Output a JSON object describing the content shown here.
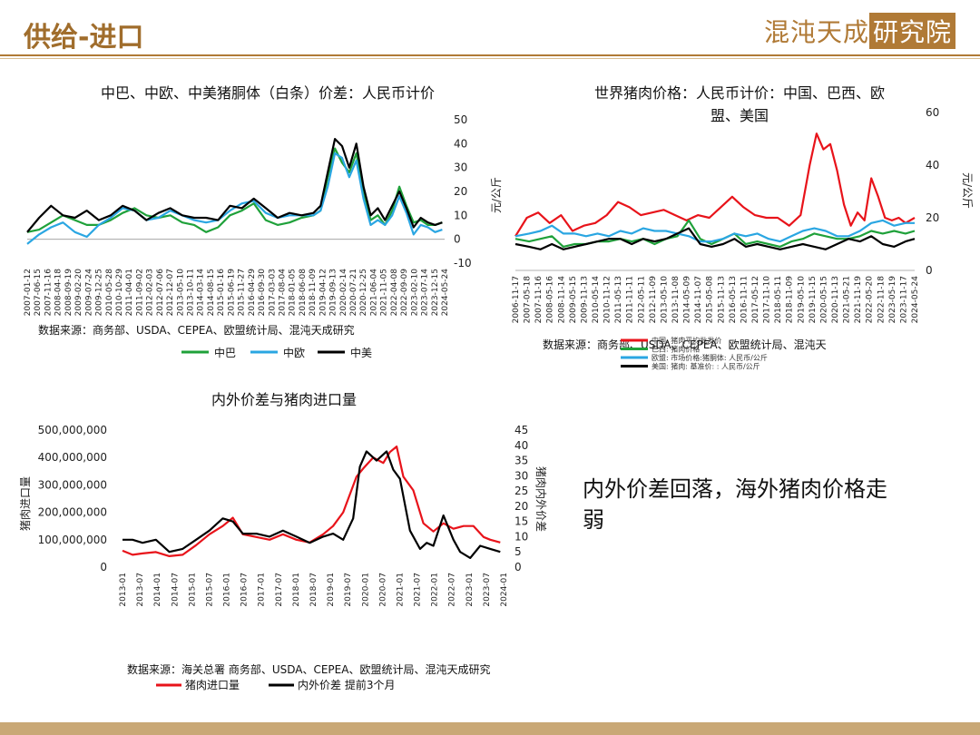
{
  "header": {
    "title": "供给-进口",
    "logo_text": "混沌天成",
    "logo_boxed": "研究院"
  },
  "callout": "内外价差回落，海外猪肉价格走弱",
  "colors": {
    "green": "#1fa13a",
    "blue": "#2aa6e2",
    "black": "#000000",
    "red": "#e8131a",
    "gold": "#b07a36"
  },
  "chart_data": [
    {
      "id": "spread",
      "type": "line",
      "title": "中巴、中欧、中美猪胴体（白条）价差：人民币计价",
      "ylim": [
        -10,
        50
      ],
      "yticks": [
        50,
        40,
        30,
        20,
        10,
        0,
        -10
      ],
      "xtick_labels": [
        "2007-01-12",
        "2007-06-15",
        "2007-11-16",
        "2008-04-18",
        "2008-09-19",
        "2009-02-20",
        "2009-07-24",
        "2009-12-25",
        "2010-05-28",
        "2010-10-29",
        "2011-04-01",
        "2011-09-02",
        "2012-02-03",
        "2012-07-06",
        "2012-12-07",
        "2013-05-10",
        "2013-10-11",
        "2014-03-14",
        "2014-08-15",
        "2015-01-16",
        "2015-06-19",
        "2015-11-27",
        "2016-04-29",
        "2016-09-30",
        "2017-03-03",
        "2017-08-04",
        "2018-01-05",
        "2018-06-08",
        "2018-11-09",
        "2019-04-12",
        "2019-09-13",
        "2020-02-14",
        "2020-07-21",
        "2020-12-25",
        "2021-06-04",
        "2021-11-05",
        "2022-04-08",
        "2022-09-09",
        "2023-02-10",
        "2023-07-14",
        "2023-12-15",
        "2024-05-24"
      ],
      "series": [
        {
          "name": "中巴",
          "color": "#1fa13a",
          "x": [
            2007.0,
            2007.5,
            2008.0,
            2008.5,
            2009.0,
            2009.5,
            2010.0,
            2010.5,
            2011.0,
            2011.5,
            2012.0,
            2012.5,
            2013.0,
            2013.5,
            2014.0,
            2014.5,
            2015.0,
            2015.5,
            2016.0,
            2016.5,
            2017.0,
            2017.5,
            2018.0,
            2018.5,
            2019.0,
            2019.3,
            2019.6,
            2019.9,
            2020.2,
            2020.5,
            2020.8,
            2021.1,
            2021.4,
            2021.7,
            2022.0,
            2022.3,
            2022.6,
            2022.9,
            2023.2,
            2023.5,
            2023.8,
            2024.1,
            2024.4
          ],
          "y": [
            3,
            4,
            7,
            10,
            8,
            6,
            6,
            8,
            11,
            13,
            10,
            9,
            10,
            7,
            6,
            3,
            5,
            10,
            12,
            15,
            8,
            6,
            7,
            9,
            10,
            12,
            26,
            38,
            32,
            28,
            36,
            20,
            8,
            10,
            6,
            12,
            22,
            14,
            7,
            8,
            6,
            6,
            7
          ]
        },
        {
          "name": "中欧",
          "color": "#2aa6e2",
          "x": [
            2007.0,
            2007.5,
            2008.0,
            2008.5,
            2009.0,
            2009.5,
            2010.0,
            2010.5,
            2011.0,
            2011.5,
            2012.0,
            2012.5,
            2013.0,
            2013.5,
            2014.0,
            2014.5,
            2015.0,
            2015.5,
            2016.0,
            2016.5,
            2017.0,
            2017.5,
            2018.0,
            2018.5,
            2019.0,
            2019.3,
            2019.6,
            2019.9,
            2020.2,
            2020.5,
            2020.8,
            2021.1,
            2021.4,
            2021.7,
            2022.0,
            2022.3,
            2022.6,
            2022.9,
            2023.2,
            2023.5,
            2023.8,
            2024.1,
            2024.4
          ],
          "y": [
            -2,
            2,
            5,
            7,
            3,
            1,
            6,
            9,
            13,
            12,
            8,
            9,
            12,
            10,
            8,
            7,
            8,
            12,
            15,
            16,
            11,
            9,
            10,
            10,
            10,
            12,
            22,
            36,
            34,
            26,
            33,
            17,
            6,
            8,
            6,
            10,
            18,
            11,
            2,
            6,
            5,
            3,
            4
          ]
        },
        {
          "name": "中美",
          "color": "#000000",
          "x": [
            2007.0,
            2007.5,
            2008.0,
            2008.5,
            2009.0,
            2009.5,
            2010.0,
            2010.5,
            2011.0,
            2011.5,
            2012.0,
            2012.5,
            2013.0,
            2013.5,
            2014.0,
            2014.5,
            2015.0,
            2015.5,
            2016.0,
            2016.5,
            2017.0,
            2017.5,
            2018.0,
            2018.5,
            2019.0,
            2019.3,
            2019.6,
            2019.9,
            2020.2,
            2020.5,
            2020.8,
            2021.1,
            2021.4,
            2021.7,
            2022.0,
            2022.3,
            2022.6,
            2022.9,
            2023.2,
            2023.5,
            2023.8,
            2024.1,
            2024.4
          ],
          "y": [
            3,
            9,
            14,
            10,
            9,
            12,
            8,
            10,
            14,
            12,
            8,
            11,
            13,
            10,
            9,
            9,
            8,
            14,
            13,
            17,
            13,
            9,
            11,
            10,
            11,
            14,
            28,
            42,
            39,
            30,
            40,
            22,
            10,
            13,
            8,
            14,
            20,
            13,
            5,
            9,
            7,
            6,
            7
          ]
        }
      ],
      "legend": "bottom",
      "source": "数据来源：商务部、USDA、CEPEA、欧盟统计局、混沌天成研究"
    },
    {
      "id": "world",
      "type": "line",
      "title_lines": [
        "世界猪肉价格：人民币计价：中国、巴西、欧",
        "盟、美国"
      ],
      "ylabel": "元/公斤",
      "ylim": [
        0,
        60
      ],
      "yticks": [
        60,
        40,
        20,
        0
      ],
      "xtick_labels": [
        "2006-11-17",
        "2007-05-18",
        "2007-11-16",
        "2008-05-16",
        "2008-11-14",
        "2009-05-15",
        "2009-11-13",
        "2010-05-14",
        "2010-11-12",
        "2011-05-13",
        "2011-11-11",
        "2012-05-11",
        "2012-11-09",
        "2013-05-10",
        "2013-11-08",
        "2014-05-09",
        "2014-11-07",
        "2015-05-08",
        "2015-11-13",
        "2016-05-13",
        "2016-11-11",
        "2017-05-12",
        "2017-11-10",
        "2018-05-11",
        "2018-11-09",
        "2019-05-10",
        "2019-11-15",
        "2020-05-15",
        "2020-11-13",
        "2021-05-21",
        "2021-11-19",
        "2022-05-20",
        "2022-11-18",
        "2023-05-19",
        "2023-11-17",
        "2024-05-24"
      ],
      "series": [
        {
          "name": "中国",
          "color": "#e8131a",
          "x": [
            2006.9,
            2007.4,
            2007.9,
            2008.4,
            2008.9,
            2009.4,
            2009.9,
            2010.4,
            2010.9,
            2011.4,
            2011.9,
            2012.4,
            2012.9,
            2013.4,
            2013.9,
            2014.4,
            2014.9,
            2015.4,
            2015.9,
            2016.4,
            2016.9,
            2017.4,
            2017.9,
            2018.4,
            2018.9,
            2019.4,
            2019.8,
            2020.1,
            2020.4,
            2020.7,
            2021.0,
            2021.3,
            2021.6,
            2021.9,
            2022.2,
            2022.5,
            2022.8,
            2023.1,
            2023.4,
            2023.7,
            2024.0,
            2024.4
          ],
          "y": [
            13,
            20,
            22,
            18,
            21,
            15,
            17,
            18,
            21,
            26,
            24,
            21,
            22,
            23,
            21,
            19,
            21,
            20,
            24,
            28,
            24,
            21,
            20,
            20,
            17,
            21,
            40,
            52,
            46,
            48,
            38,
            25,
            17,
            22,
            19,
            35,
            28,
            20,
            19,
            20,
            18,
            20
          ]
        },
        {
          "name": "巴西",
          "color": "#1fa13a",
          "x": [
            2006.9,
            2007.5,
            2008.0,
            2008.5,
            2009.0,
            2009.5,
            2010.0,
            2010.5,
            2011.0,
            2011.5,
            2012.0,
            2012.5,
            2013.0,
            2013.5,
            2014.0,
            2014.5,
            2015.0,
            2015.5,
            2016.0,
            2016.5,
            2017.0,
            2017.5,
            2018.0,
            2018.5,
            2019.0,
            2019.5,
            2020.0,
            2020.5,
            2021.0,
            2021.5,
            2022.0,
            2022.5,
            2023.0,
            2023.5,
            2024.0,
            2024.4
          ],
          "y": [
            12,
            11,
            12,
            13,
            9,
            10,
            10,
            11,
            11,
            12,
            11,
            12,
            10,
            12,
            13,
            19,
            12,
            10,
            12,
            14,
            10,
            11,
            10,
            9,
            11,
            12,
            14,
            13,
            12,
            12,
            13,
            15,
            14,
            15,
            14,
            15
          ]
        },
        {
          "name": "欧盟",
          "color": "#2aa6e2",
          "x": [
            2006.9,
            2007.5,
            2008.0,
            2008.5,
            2009.0,
            2009.5,
            2010.0,
            2010.5,
            2011.0,
            2011.5,
            2012.0,
            2012.5,
            2013.0,
            2013.5,
            2014.0,
            2014.5,
            2015.0,
            2015.5,
            2016.0,
            2016.5,
            2017.0,
            2017.5,
            2018.0,
            2018.5,
            2019.0,
            2019.5,
            2020.0,
            2020.5,
            2021.0,
            2021.5,
            2022.0,
            2022.5,
            2023.0,
            2023.5,
            2024.0,
            2024.4
          ],
          "y": [
            13,
            14,
            15,
            17,
            14,
            14,
            13,
            14,
            13,
            15,
            14,
            16,
            15,
            15,
            14,
            13,
            11,
            11,
            12,
            14,
            13,
            14,
            12,
            11,
            13,
            15,
            16,
            15,
            13,
            13,
            15,
            18,
            19,
            17,
            18,
            18
          ]
        },
        {
          "name": "美国",
          "color": "#000000",
          "x": [
            2006.9,
            2007.5,
            2008.0,
            2008.5,
            2009.0,
            2009.5,
            2010.0,
            2010.5,
            2011.0,
            2011.5,
            2012.0,
            2012.5,
            2013.0,
            2013.5,
            2014.0,
            2014.5,
            2015.0,
            2015.5,
            2016.0,
            2016.5,
            2017.0,
            2017.5,
            2018.0,
            2018.5,
            2019.0,
            2019.5,
            2020.0,
            2020.5,
            2021.0,
            2021.5,
            2022.0,
            2022.5,
            2023.0,
            2023.5,
            2024.0,
            2024.4
          ],
          "y": [
            10,
            9,
            8,
            10,
            8,
            9,
            10,
            11,
            12,
            12,
            10,
            12,
            11,
            12,
            14,
            16,
            10,
            9,
            10,
            12,
            9,
            10,
            9,
            8,
            9,
            10,
            9,
            8,
            10,
            12,
            11,
            13,
            10,
            9,
            11,
            12
          ]
        }
      ],
      "source": "数据来源：商务部、USDA、CEPEA、欧盟统计局、混沌天",
      "legend_lines": [
        "中国: 猪肉平均批发价",
        "巴西: 猪肉价格",
        "欧盟: 市场价格:猪胴体: 人民币/公斤",
        "美国: 猪肉: 基准价: : 人民币/公斤"
      ]
    },
    {
      "id": "import",
      "type": "line",
      "title": "内外价差与猪肉进口量",
      "ylabel": "猪肉进口量",
      "y2label": "猪肉内外价差",
      "ylim": [
        0,
        500000000
      ],
      "yticks": [
        "500,000,000",
        "400,000,000",
        "300,000,000",
        "200,000,000",
        "100,000,000",
        "0"
      ],
      "y2lim": [
        0,
        45
      ],
      "y2ticks": [
        45,
        40,
        35,
        30,
        25,
        20,
        15,
        10,
        5,
        0
      ],
      "xtick_labels": [
        "2013-01",
        "2013-07",
        "2014-01",
        "2014-07",
        "2015-01",
        "2015-07",
        "2016-01",
        "2016-07",
        "2017-01",
        "2017-07",
        "2018-01",
        "2018-07",
        "2019-01",
        "2019-07",
        "2020-01",
        "2020-07",
        "2021-01",
        "2021-07",
        "2022-01",
        "2022-07",
        "2023-01",
        "2023-07",
        "2024-01"
      ],
      "series": [
        {
          "name": "猪肉进口量",
          "color": "#e8131a",
          "axis": "left",
          "x": [
            2013.0,
            2013.3,
            2013.6,
            2014.0,
            2014.4,
            2014.8,
            2015.2,
            2015.6,
            2016.0,
            2016.3,
            2016.6,
            2017.0,
            2017.4,
            2017.8,
            2018.2,
            2018.6,
            2019.0,
            2019.3,
            2019.6,
            2020.0,
            2020.2,
            2020.5,
            2020.8,
            2021.0,
            2021.2,
            2021.4,
            2021.7,
            2022.0,
            2022.3,
            2022.6,
            2022.9,
            2023.2,
            2023.5,
            2023.8,
            2024.0,
            2024.3
          ],
          "y": [
            60000000,
            45000000,
            50000000,
            55000000,
            40000000,
            45000000,
            80000000,
            120000000,
            150000000,
            180000000,
            120000000,
            110000000,
            100000000,
            120000000,
            100000000,
            90000000,
            120000000,
            150000000,
            200000000,
            330000000,
            360000000,
            400000000,
            380000000,
            420000000,
            440000000,
            330000000,
            280000000,
            160000000,
            130000000,
            160000000,
            140000000,
            150000000,
            150000000,
            110000000,
            100000000,
            90000000
          ]
        },
        {
          "name": "内外价差 提前3个月",
          "color": "#000000",
          "axis": "right",
          "x": [
            2013.0,
            2013.3,
            2013.6,
            2014.0,
            2014.4,
            2014.8,
            2015.2,
            2015.6,
            2016.0,
            2016.3,
            2016.6,
            2017.0,
            2017.4,
            2017.8,
            2018.2,
            2018.6,
            2019.0,
            2019.3,
            2019.6,
            2019.9,
            2020.1,
            2020.3,
            2020.6,
            2020.9,
            2021.1,
            2021.3,
            2021.6,
            2021.9,
            2022.1,
            2022.3,
            2022.6,
            2022.9,
            2023.1,
            2023.4,
            2023.7,
            2024.0,
            2024.3
          ],
          "y": [
            9,
            9,
            8,
            9,
            5,
            6,
            9,
            12,
            16,
            15,
            11,
            11,
            10,
            12,
            10,
            8,
            10,
            11,
            9,
            16,
            33,
            38,
            35,
            38,
            32,
            29,
            12,
            6,
            8,
            7,
            17,
            9,
            5,
            3,
            7,
            6,
            5
          ]
        }
      ],
      "source": "数据来源：海关总署 商务部、USDA、CEPEA、欧盟统计局、混沌天成研究"
    }
  ]
}
